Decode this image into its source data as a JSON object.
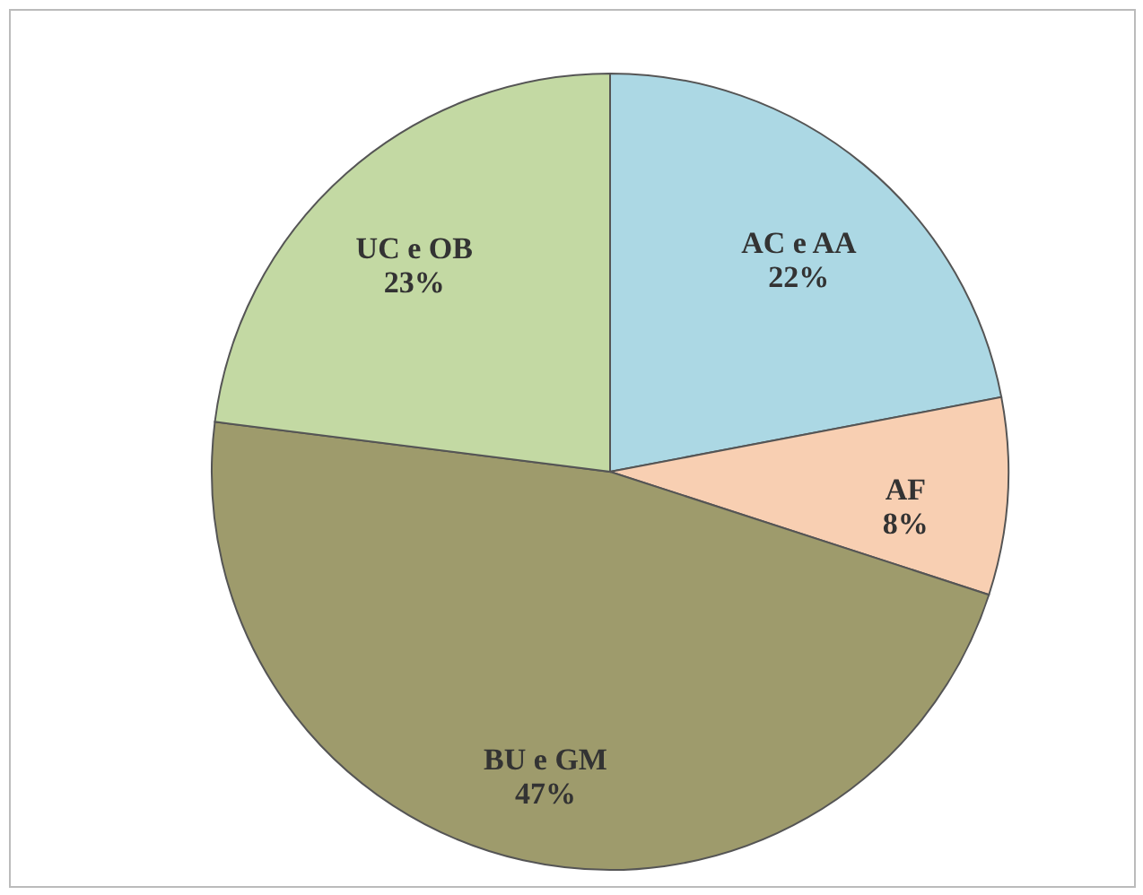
{
  "chart_data": {
    "type": "pie",
    "categories": [
      "AC e AA",
      "AF",
      "BU e GM",
      "UC e OB"
    ],
    "values": [
      22,
      8,
      47,
      23
    ],
    "value_labels": [
      "22%",
      "8%",
      "47%",
      "23%"
    ],
    "colors": [
      "#acd8e4",
      "#f8cfb2",
      "#9e9b6c",
      "#c3d9a3"
    ]
  }
}
